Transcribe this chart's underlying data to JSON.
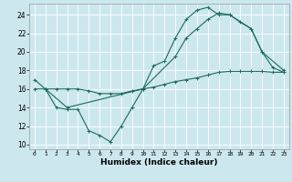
{
  "xlabel": "Humidex (Indice chaleur)",
  "bg_color": "#cce8ee",
  "grid_color": "#ffffff",
  "line_color": "#1a6b5a",
  "xlim": [
    -0.5,
    23.5
  ],
  "ylim": [
    9.5,
    25.2
  ],
  "xticks": [
    0,
    1,
    2,
    3,
    4,
    5,
    6,
    7,
    8,
    9,
    10,
    11,
    12,
    13,
    14,
    15,
    16,
    17,
    18,
    19,
    20,
    21,
    22,
    23
  ],
  "yticks": [
    10,
    12,
    14,
    16,
    18,
    20,
    22,
    24
  ],
  "line1_x": [
    0,
    1,
    2,
    3,
    4,
    5,
    6,
    7,
    8,
    9,
    10,
    11,
    12,
    13,
    14,
    15,
    16,
    17,
    18,
    19,
    20,
    21,
    22,
    23
  ],
  "line1_y": [
    17.0,
    16.0,
    14.0,
    13.8,
    13.8,
    11.5,
    11.0,
    10.3,
    12.0,
    14.0,
    16.0,
    18.5,
    19.0,
    21.5,
    23.5,
    24.5,
    24.8,
    24.0,
    24.0,
    23.2,
    22.5,
    20.0,
    18.3,
    17.8
  ],
  "line2_x": [
    1,
    3,
    10,
    13,
    14,
    15,
    16,
    17,
    18,
    20,
    21,
    23
  ],
  "line2_y": [
    16.0,
    14.0,
    16.0,
    19.5,
    21.5,
    22.5,
    23.5,
    24.2,
    24.0,
    22.5,
    20.0,
    18.0
  ],
  "line3_x": [
    0,
    1,
    2,
    3,
    4,
    5,
    6,
    7,
    8,
    9,
    10,
    11,
    12,
    13,
    14,
    15,
    16,
    17,
    18,
    19,
    20,
    21,
    22,
    23
  ],
  "line3_y": [
    16.0,
    16.0,
    16.0,
    16.0,
    16.0,
    15.8,
    15.5,
    15.5,
    15.5,
    15.8,
    16.0,
    16.2,
    16.5,
    16.8,
    17.0,
    17.2,
    17.5,
    17.8,
    17.9,
    17.9,
    17.9,
    17.9,
    17.8,
    17.8
  ]
}
